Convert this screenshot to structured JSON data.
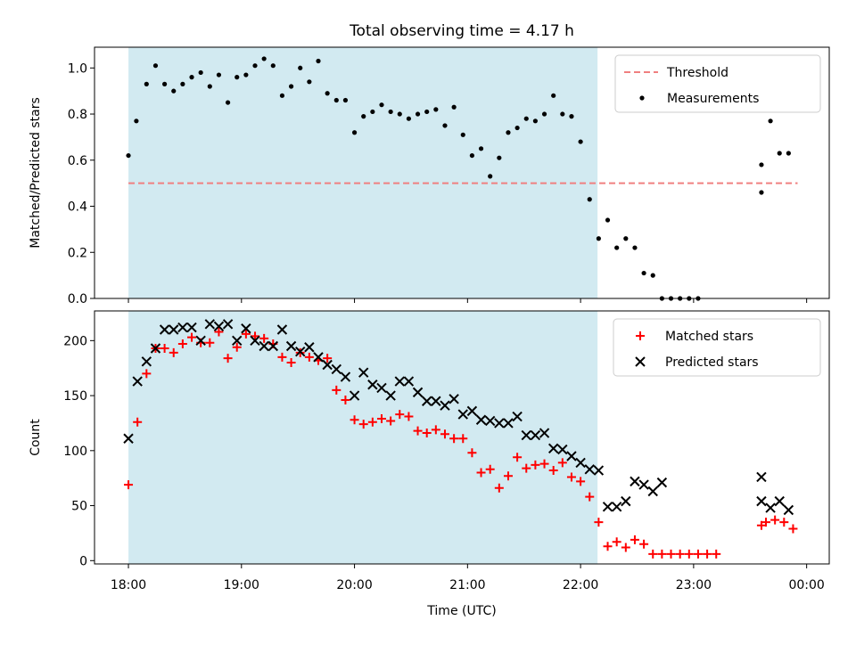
{
  "chart_data": [
    {
      "type": "scatter",
      "title": "Total observing time = 4.17 h",
      "ylabel": "Matched/Predicted stars",
      "ylim": [
        0,
        1.09
      ],
      "xlim_hours": [
        17.7,
        24.2
      ],
      "yticks": [
        0.0,
        0.2,
        0.4,
        0.6,
        0.8,
        1.0
      ],
      "ytick_labels": [
        "0.0",
        "0.2",
        "0.4",
        "0.6",
        "0.8",
        "1.0"
      ],
      "grid": false,
      "legend_position": "top-right",
      "shaded_span_hours": [
        18.0,
        22.15
      ],
      "shade_color": "#add8e6",
      "threshold": {
        "name": "Threshold",
        "value": 0.5,
        "x_range_hours": [
          18.0,
          23.92
        ],
        "color": "#f08080",
        "style": "dashed"
      },
      "series": [
        {
          "name": "Measurements",
          "color": "#000000",
          "marker": "dot",
          "points": [
            [
              18.0,
              0.62
            ],
            [
              18.07,
              0.77
            ],
            [
              18.16,
              0.93
            ],
            [
              18.24,
              1.01
            ],
            [
              18.32,
              0.93
            ],
            [
              18.4,
              0.9
            ],
            [
              18.48,
              0.93
            ],
            [
              18.56,
              0.96
            ],
            [
              18.64,
              0.98
            ],
            [
              18.72,
              0.92
            ],
            [
              18.8,
              0.97
            ],
            [
              18.88,
              0.85
            ],
            [
              18.96,
              0.96
            ],
            [
              19.04,
              0.97
            ],
            [
              19.12,
              1.01
            ],
            [
              19.2,
              1.04
            ],
            [
              19.28,
              1.01
            ],
            [
              19.36,
              0.88
            ],
            [
              19.44,
              0.92
            ],
            [
              19.52,
              1.0
            ],
            [
              19.6,
              0.94
            ],
            [
              19.68,
              1.03
            ],
            [
              19.76,
              0.89
            ],
            [
              19.84,
              0.86
            ],
            [
              19.92,
              0.86
            ],
            [
              20.0,
              0.72
            ],
            [
              20.08,
              0.79
            ],
            [
              20.16,
              0.81
            ],
            [
              20.24,
              0.84
            ],
            [
              20.32,
              0.81
            ],
            [
              20.4,
              0.8
            ],
            [
              20.48,
              0.78
            ],
            [
              20.56,
              0.8
            ],
            [
              20.64,
              0.81
            ],
            [
              20.72,
              0.82
            ],
            [
              20.8,
              0.75
            ],
            [
              20.88,
              0.83
            ],
            [
              20.96,
              0.71
            ],
            [
              21.04,
              0.62
            ],
            [
              21.12,
              0.65
            ],
            [
              21.2,
              0.53
            ],
            [
              21.28,
              0.61
            ],
            [
              21.36,
              0.72
            ],
            [
              21.44,
              0.74
            ],
            [
              21.52,
              0.78
            ],
            [
              21.6,
              0.77
            ],
            [
              21.68,
              0.8
            ],
            [
              21.76,
              0.88
            ],
            [
              21.84,
              0.8
            ],
            [
              21.92,
              0.79
            ],
            [
              22.0,
              0.68
            ],
            [
              22.08,
              0.43
            ],
            [
              22.16,
              0.26
            ],
            [
              22.24,
              0.34
            ],
            [
              22.32,
              0.22
            ],
            [
              22.4,
              0.26
            ],
            [
              22.48,
              0.22
            ],
            [
              22.56,
              0.11
            ],
            [
              22.64,
              0.1
            ],
            [
              22.72,
              0.0
            ],
            [
              22.8,
              0.0
            ],
            [
              22.88,
              0.0
            ],
            [
              22.96,
              0.0
            ],
            [
              23.04,
              0.0
            ],
            [
              23.6,
              0.58
            ],
            [
              23.6,
              0.46
            ],
            [
              23.68,
              0.77
            ],
            [
              23.76,
              0.63
            ],
            [
              23.84,
              0.63
            ]
          ]
        }
      ]
    },
    {
      "type": "scatter",
      "xlabel": "Time (UTC)",
      "ylabel": "Count",
      "ylim": [
        -3,
        227
      ],
      "xlim_hours": [
        17.7,
        24.2
      ],
      "xticks_hours": [
        18,
        19,
        20,
        21,
        22,
        23,
        24
      ],
      "xtick_labels": [
        "18:00",
        "19:00",
        "20:00",
        "21:00",
        "22:00",
        "23:00",
        "00:00"
      ],
      "yticks": [
        0,
        50,
        100,
        150,
        200
      ],
      "ytick_labels": [
        "0",
        "50",
        "100",
        "150",
        "200"
      ],
      "grid": false,
      "legend_position": "top-right",
      "shaded_span_hours": [
        18.0,
        22.15
      ],
      "shade_color": "#add8e6",
      "series": [
        {
          "name": "Matched stars",
          "color": "#ff0000",
          "marker": "plus",
          "points": [
            [
              18.0,
              69
            ],
            [
              18.08,
              126
            ],
            [
              18.16,
              170
            ],
            [
              18.24,
              193
            ],
            [
              18.32,
              193
            ],
            [
              18.4,
              189
            ],
            [
              18.48,
              197
            ],
            [
              18.56,
              203
            ],
            [
              18.64,
              198
            ],
            [
              18.72,
              198
            ],
            [
              18.8,
              208
            ],
            [
              18.88,
              184
            ],
            [
              18.96,
              194
            ],
            [
              19.04,
              206
            ],
            [
              19.12,
              204
            ],
            [
              19.2,
              202
            ],
            [
              19.28,
              197
            ],
            [
              19.36,
              185
            ],
            [
              19.44,
              180
            ],
            [
              19.52,
              189
            ],
            [
              19.6,
              185
            ],
            [
              19.68,
              182
            ],
            [
              19.76,
              184
            ],
            [
              19.84,
              155
            ],
            [
              19.92,
              146
            ],
            [
              20.0,
              128
            ],
            [
              20.08,
              124
            ],
            [
              20.16,
              126
            ],
            [
              20.24,
              129
            ],
            [
              20.32,
              127
            ],
            [
              20.4,
              133
            ],
            [
              20.48,
              131
            ],
            [
              20.56,
              118
            ],
            [
              20.64,
              116
            ],
            [
              20.72,
              119
            ],
            [
              20.8,
              115
            ],
            [
              20.88,
              111
            ],
            [
              20.96,
              111
            ],
            [
              21.04,
              98
            ],
            [
              21.12,
              80
            ],
            [
              21.2,
              83
            ],
            [
              21.28,
              66
            ],
            [
              21.36,
              77
            ],
            [
              21.44,
              94
            ],
            [
              21.52,
              84
            ],
            [
              21.6,
              87
            ],
            [
              21.68,
              88
            ],
            [
              21.76,
              82
            ],
            [
              21.84,
              89
            ],
            [
              21.92,
              76
            ],
            [
              22.0,
              72
            ],
            [
              22.08,
              58
            ],
            [
              22.16,
              35
            ],
            [
              22.24,
              13
            ],
            [
              22.32,
              17
            ],
            [
              22.4,
              12
            ],
            [
              22.48,
              19
            ],
            [
              22.56,
              15
            ],
            [
              22.64,
              6
            ],
            [
              22.72,
              6
            ],
            [
              22.8,
              6
            ],
            [
              22.88,
              6
            ],
            [
              22.96,
              6
            ],
            [
              23.04,
              6
            ],
            [
              23.12,
              6
            ],
            [
              23.2,
              6
            ],
            [
              23.6,
              32
            ],
            [
              23.64,
              35
            ],
            [
              23.72,
              37
            ],
            [
              23.8,
              35
            ],
            [
              23.88,
              29
            ]
          ]
        },
        {
          "name": "Predicted stars",
          "color": "#000000",
          "marker": "x",
          "points": [
            [
              18.0,
              111
            ],
            [
              18.08,
              163
            ],
            [
              18.16,
              181
            ],
            [
              18.24,
              193
            ],
            [
              18.32,
              210
            ],
            [
              18.4,
              210
            ],
            [
              18.48,
              212
            ],
            [
              18.56,
              212
            ],
            [
              18.64,
              200
            ],
            [
              18.72,
              215
            ],
            [
              18.8,
              213
            ],
            [
              18.88,
              215
            ],
            [
              18.96,
              200
            ],
            [
              19.04,
              211
            ],
            [
              19.12,
              200
            ],
            [
              19.2,
              195
            ],
            [
              19.28,
              195
            ],
            [
              19.36,
              210
            ],
            [
              19.44,
              195
            ],
            [
              19.52,
              190
            ],
            [
              19.6,
              194
            ],
            [
              19.68,
              185
            ],
            [
              19.76,
              178
            ],
            [
              19.84,
              174
            ],
            [
              19.92,
              167
            ],
            [
              20.0,
              150
            ],
            [
              20.08,
              171
            ],
            [
              20.16,
              160
            ],
            [
              20.24,
              157
            ],
            [
              20.32,
              150
            ],
            [
              20.4,
              163
            ],
            [
              20.48,
              163
            ],
            [
              20.56,
              153
            ],
            [
              20.64,
              145
            ],
            [
              20.72,
              145
            ],
            [
              20.8,
              141
            ],
            [
              20.88,
              147
            ],
            [
              20.96,
              133
            ],
            [
              21.04,
              136
            ],
            [
              21.12,
              128
            ],
            [
              21.2,
              127
            ],
            [
              21.28,
              125
            ],
            [
              21.36,
              125
            ],
            [
              21.44,
              131
            ],
            [
              21.52,
              114
            ],
            [
              21.6,
              114
            ],
            [
              21.68,
              116
            ],
            [
              21.76,
              102
            ],
            [
              21.84,
              101
            ],
            [
              21.92,
              95
            ],
            [
              22.0,
              89
            ],
            [
              22.08,
              83
            ],
            [
              22.16,
              82
            ],
            [
              22.24,
              49
            ],
            [
              22.32,
              49
            ],
            [
              22.4,
              54
            ],
            [
              22.48,
              72
            ],
            [
              22.56,
              69
            ],
            [
              22.64,
              63
            ],
            [
              22.72,
              71
            ],
            [
              23.6,
              76
            ],
            [
              23.6,
              54
            ],
            [
              23.68,
              48
            ],
            [
              23.76,
              54
            ],
            [
              23.84,
              46
            ]
          ]
        }
      ]
    }
  ]
}
